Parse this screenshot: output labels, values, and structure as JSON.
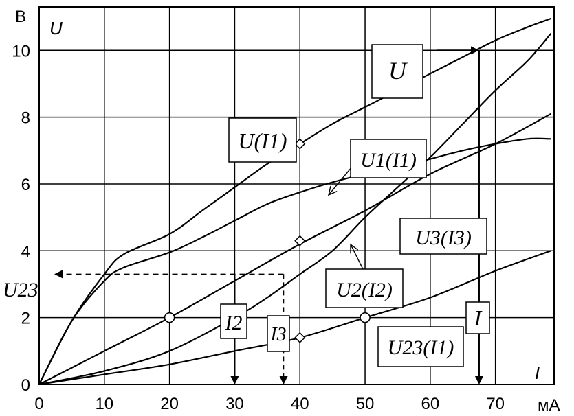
{
  "chart_data": {
    "type": "line",
    "y_unit": "В",
    "x_unit": "мА",
    "y_axis_label": "U",
    "x_axis_label": "I",
    "xlim": [
      0,
      79
    ],
    "ylim": [
      0,
      11.3
    ],
    "x_ticks": [
      0,
      10,
      20,
      30,
      40,
      50,
      60,
      70
    ],
    "y_ticks": [
      0,
      2,
      4,
      6,
      8,
      10
    ],
    "x_tick_labels": [
      "0",
      "10",
      "20",
      "30",
      "40",
      "50",
      "60",
      "70"
    ],
    "y_tick_labels": [
      "0",
      "2",
      "4",
      "6",
      "8",
      "10"
    ],
    "grid": true,
    "series": [
      {
        "key": "U",
        "x": [
          0,
          5,
          10,
          13,
          20,
          25,
          30,
          35,
          40,
          45,
          50,
          55,
          60,
          65,
          70,
          75,
          78.5
        ],
        "y": [
          0,
          1.9,
          3.3,
          3.9,
          4.5,
          5.2,
          5.9,
          6.6,
          7.2,
          7.8,
          8.3,
          8.8,
          9.3,
          9.8,
          10.3,
          10.7,
          10.95
        ]
      },
      {
        "key": "U1",
        "x": [
          0,
          5,
          10,
          13,
          20,
          25,
          30,
          35,
          40,
          45,
          50,
          55,
          60,
          65,
          70,
          75,
          78.5
        ],
        "y": [
          0,
          1.9,
          3.1,
          3.5,
          3.95,
          4.4,
          4.9,
          5.4,
          5.75,
          6.05,
          6.3,
          6.5,
          6.75,
          7.0,
          7.2,
          7.35,
          7.35
        ]
      },
      {
        "key": "U2",
        "x": [
          0,
          10,
          20,
          30,
          40,
          50,
          60,
          70,
          78.5
        ],
        "y": [
          0,
          1.0,
          2.0,
          3.1,
          4.2,
          5.2,
          6.3,
          7.2,
          8.1
        ]
      },
      {
        "key": "U3",
        "x": [
          0,
          10,
          20,
          30,
          35,
          40,
          45,
          50,
          55,
          60,
          65,
          70,
          75,
          78.5
        ],
        "y": [
          0,
          0.4,
          1.0,
          2.0,
          2.6,
          3.3,
          4.0,
          5.0,
          5.9,
          6.8,
          7.8,
          8.8,
          9.7,
          10.5
        ]
      },
      {
        "key": "U23",
        "x": [
          0,
          10,
          20,
          30,
          40,
          50,
          60,
          70,
          78.5
        ],
        "y": [
          0,
          0.3,
          0.6,
          1.0,
          1.4,
          2.0,
          2.6,
          3.4,
          4.0
        ]
      }
    ],
    "curve_labels": {
      "U": "U",
      "U_I1": "U(I1)",
      "U1_I1": "U1(I1)",
      "U2_I2": "U2(I2)",
      "U3_I3": "U3(I3)",
      "U23_I1": "U23(I1)",
      "I": "I",
      "I2": "I2",
      "I3": "I3",
      "U23": "U23"
    },
    "annotations": {
      "U23_level": 3.3,
      "I_value": 67.5,
      "I2_value": 30,
      "I3_value": 37.5,
      "I1_value": 40,
      "circle_points": [
        {
          "x": 20,
          "y": 2.0
        },
        {
          "x": 50,
          "y": 2.0
        }
      ],
      "diamond_points": [
        {
          "x": 40,
          "y": 7.2
        },
        {
          "x": 40,
          "y": 4.3
        },
        {
          "x": 40,
          "y": 1.4
        }
      ]
    }
  }
}
